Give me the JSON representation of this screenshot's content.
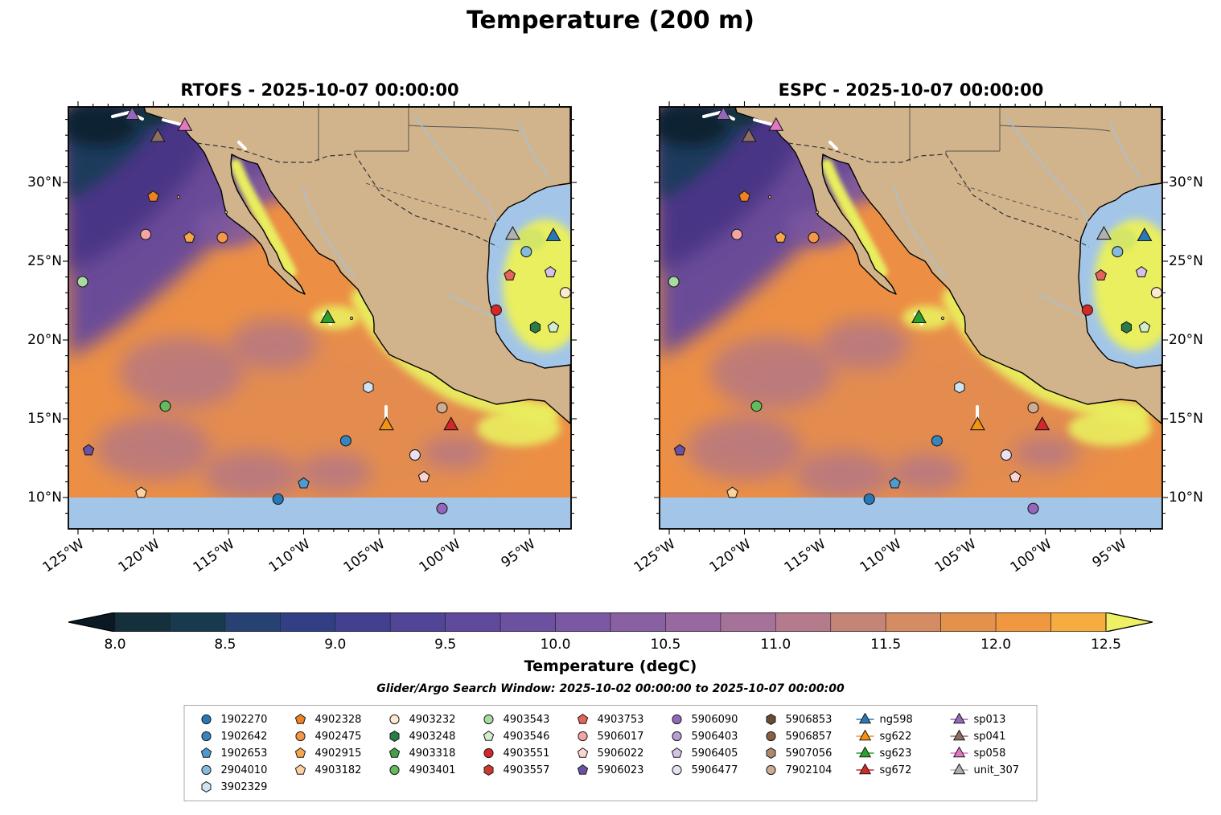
{
  "title": "Temperature (200 m)",
  "subtitle": "Glider/Argo Search Window: 2025-10-02 00:00:00 to 2025-10-07 00:00:00",
  "panels": [
    {
      "model": "RTOFS",
      "title": "RTOFS - 2025-10-07 00:00:00"
    },
    {
      "model": "ESPC",
      "title": "ESPC - 2025-10-07 00:00:00"
    }
  ],
  "axes": {
    "lat_ticks": [
      {
        "label": "30°N",
        "value": 30
      },
      {
        "label": "25°N",
        "value": 25
      },
      {
        "label": "20°N",
        "value": 20
      },
      {
        "label": "15°N",
        "value": 15
      },
      {
        "label": "10°N",
        "value": 10
      }
    ],
    "lon_ticks": [
      {
        "label": "125°W",
        "value": -125
      },
      {
        "label": "120°W",
        "value": -120
      },
      {
        "label": "115°W",
        "value": -115
      },
      {
        "label": "110°W",
        "value": -110
      },
      {
        "label": "105°W",
        "value": -105
      },
      {
        "label": "100°W",
        "value": -100
      },
      {
        "label": "95°W",
        "value": -95
      }
    ]
  },
  "colorbar": {
    "label": "Temperature (degC)",
    "tick_labels": [
      "8.0",
      "8.5",
      "9.0",
      "9.5",
      "10.0",
      "10.5",
      "11.0",
      "11.5",
      "12.0",
      "12.5"
    ],
    "vmin": 8.0,
    "vmax": 12.5,
    "under_color": "#0a1a24",
    "over_color": "#edf163",
    "segment_colors": [
      "#13303c",
      "#173a4e",
      "#274173",
      "#333f85",
      "#42408f",
      "#514597",
      "#5f4a9d",
      "#6d51a1",
      "#7b58a3",
      "#8961a3",
      "#9769a0",
      "#a5729a",
      "#b47b8d",
      "#c48478",
      "#d48c62",
      "#e4914d",
      "#ef9840",
      "#f6ad3f"
    ]
  },
  "map_colors": {
    "land": "#d2b48c",
    "no_data_water": "#a3c6e8",
    "coastline": "#000000"
  },
  "legend": {
    "columns": [
      [
        {
          "label": "1902270",
          "shape": "circle",
          "color": "#2878b8"
        },
        {
          "label": "1902642",
          "shape": "circle",
          "color": "#3585bf"
        },
        {
          "label": "1902653",
          "shape": "pentagon",
          "color": "#4f9bcf"
        },
        {
          "label": "2904010",
          "shape": "circle",
          "color": "#85bcdb"
        },
        {
          "label": "3902329",
          "shape": "hexagon",
          "color": "#cfe3f2"
        }
      ],
      [
        {
          "label": "4902328",
          "shape": "pentagon",
          "color": "#ef8122"
        },
        {
          "label": "4902475",
          "shape": "circle",
          "color": "#f79646"
        },
        {
          "label": "4902915",
          "shape": "pentagon",
          "color": "#f9a64a"
        },
        {
          "label": "4903182",
          "shape": "pentagon",
          "color": "#fdd1a0"
        }
      ],
      [
        {
          "label": "4903232",
          "shape": "circle",
          "color": "#fdeacc"
        },
        {
          "label": "4903248",
          "shape": "hexagon",
          "color": "#287d46"
        },
        {
          "label": "4903318",
          "shape": "pentagon",
          "color": "#46a049"
        },
        {
          "label": "4903401",
          "shape": "circle",
          "color": "#63bb5e"
        }
      ],
      [
        {
          "label": "4903543",
          "shape": "circle",
          "color": "#a8dba0"
        },
        {
          "label": "4903546",
          "shape": "pentagon",
          "color": "#d2edcc"
        },
        {
          "label": "4903551",
          "shape": "circle",
          "color": "#d62728"
        },
        {
          "label": "4903557",
          "shape": "hexagon",
          "color": "#cc3a2e"
        }
      ],
      [
        {
          "label": "4903753",
          "shape": "pentagon",
          "color": "#e4635a"
        },
        {
          "label": "5906017",
          "shape": "circle",
          "color": "#f4a5a3"
        },
        {
          "label": "5906022",
          "shape": "pentagon",
          "color": "#fbd5d3"
        },
        {
          "label": "5906023",
          "shape": "pentagon",
          "color": "#6a51a3"
        }
      ],
      [
        {
          "label": "5906090",
          "shape": "circle",
          "color": "#9467bd"
        },
        {
          "label": "5906403",
          "shape": "circle",
          "color": "#b79dd4"
        },
        {
          "label": "5906405",
          "shape": "pentagon",
          "color": "#d3c2e5"
        },
        {
          "label": "5906477",
          "shape": "circle",
          "color": "#e9e0f2"
        }
      ],
      [
        {
          "label": "5906853",
          "shape": "hexagon",
          "color": "#6b4a2f"
        },
        {
          "label": "5906857",
          "shape": "circle",
          "color": "#8a5f3f"
        },
        {
          "label": "5907056",
          "shape": "hexagon",
          "color": "#b08968"
        },
        {
          "label": "7902104",
          "shape": "circle",
          "color": "#cdac92"
        }
      ],
      [
        {
          "label": "ng598",
          "shape": "triangle",
          "color": "#2878b8",
          "track_line": true
        },
        {
          "label": "sg622",
          "shape": "triangle",
          "color": "#f5920f",
          "track_line": true
        },
        {
          "label": "sg623",
          "shape": "triangle",
          "color": "#2ca02c",
          "track_line": true
        },
        {
          "label": "sg672",
          "shape": "triangle",
          "color": "#d62728",
          "track_line": true
        }
      ],
      [
        {
          "label": "sp013",
          "shape": "triangle",
          "color": "#9467bd",
          "track_line": true
        },
        {
          "label": "sp041",
          "shape": "triangle",
          "color": "#8d6e63",
          "track_line": true
        },
        {
          "label": "sp058",
          "shape": "triangle",
          "color": "#e377c2",
          "track_line": true
        },
        {
          "label": "unit_307",
          "shape": "triangle",
          "color": "#b0b0b0",
          "track_line": true
        }
      ]
    ]
  },
  "chart_data": {
    "type": "heatmap",
    "subtype": "geographic filled-contour model comparison, 2 panels sharing one colorbar",
    "variable": "Temperature at 200 m depth (degC)",
    "panel_titles": [
      "RTOFS - 2025-10-07 00:00:00",
      "ESPC - 2025-10-07 00:00:00"
    ],
    "lon_range_degE": [
      -127.6,
      -92.2
    ],
    "lat_range_degN": [
      8.0,
      34.8
    ],
    "color_scale": {
      "vmin": 8.0,
      "vmax": 12.5,
      "tick_step": 0.5,
      "units": "degC",
      "extend": "both"
    },
    "field_description": [
      "Cold water 8-9 degC (dark navy) in the far northwest off California",
      "Purple band 9.5-10.5 degC along the California/Baja current region",
      "Orange 11-12 degC across the subtropical Pacific interior with dusty-purple 10-10.5 degC patches",
      "Yellow >12.5 degC in the upper Gulf of California, along the southwest Mexican coast, and a warm eddy in the western Gulf of Mexico",
      "Light blue denotes no-data water (Gulf of Mexico shelf and south of 10°N); tan denotes land"
    ],
    "search_window": "2025-10-02 00:00:00 to 2025-10-07 00:00:00",
    "platform_markers": [
      {
        "id": "sp013",
        "shape": "triangle",
        "color": "#9467bd",
        "lon": -121.4,
        "lat": 34.3
      },
      {
        "id": "sp058",
        "shape": "triangle",
        "color": "#e377c2",
        "lon": -117.9,
        "lat": 33.6
      },
      {
        "id": "sp041",
        "shape": "triangle",
        "color": "#8d6e63",
        "lon": -119.7,
        "lat": 32.9
      },
      {
        "id": "4902328",
        "shape": "pentagon",
        "color": "#ef8122",
        "lon": -120.0,
        "lat": 29.1
      },
      {
        "id": "5906017",
        "shape": "circle",
        "color": "#f4a5a3",
        "lon": -120.5,
        "lat": 26.7
      },
      {
        "id": "4902915",
        "shape": "pentagon",
        "color": "#f9a64a",
        "lon": -117.6,
        "lat": 26.5
      },
      {
        "id": "4902475",
        "shape": "circle",
        "color": "#f79646",
        "lon": -115.4,
        "lat": 26.5
      },
      {
        "id": "4903543",
        "shape": "circle",
        "color": "#a8dba0",
        "lon": -124.7,
        "lat": 23.7
      },
      {
        "id": "sg623",
        "shape": "triangle",
        "color": "#2ca02c",
        "lon": -108.4,
        "lat": 21.4
      },
      {
        "id": "unit_307",
        "shape": "triangle",
        "color": "#b0b0b0",
        "lon": -96.1,
        "lat": 26.7
      },
      {
        "id": "ng598",
        "shape": "triangle",
        "color": "#2878b8",
        "lon": -93.4,
        "lat": 26.6
      },
      {
        "id": "2904010",
        "shape": "circle",
        "color": "#85bcdb",
        "lon": -95.2,
        "lat": 25.6
      },
      {
        "id": "4903753",
        "shape": "pentagon",
        "color": "#e4635a",
        "lon": -96.3,
        "lat": 24.1
      },
      {
        "id": "5906405",
        "shape": "pentagon",
        "color": "#d3c2e5",
        "lon": -93.6,
        "lat": 24.3
      },
      {
        "id": "4903232",
        "shape": "circle",
        "color": "#fdeacc",
        "lon": -92.6,
        "lat": 23.0
      },
      {
        "id": "4903551",
        "shape": "circle",
        "color": "#d62728",
        "lon": -97.2,
        "lat": 21.9
      },
      {
        "id": "4903248",
        "shape": "hexagon",
        "color": "#287d46",
        "lon": -94.6,
        "lat": 20.8
      },
      {
        "id": "4903546",
        "shape": "pentagon",
        "color": "#d2edcc",
        "lon": -93.4,
        "lat": 20.8
      },
      {
        "id": "3902329",
        "shape": "hexagon",
        "color": "#cfe3f2",
        "lon": -105.7,
        "lat": 17.0
      },
      {
        "id": "4903401",
        "shape": "circle",
        "color": "#63bb5e",
        "lon": -119.2,
        "lat": 15.8
      },
      {
        "id": "7902104",
        "shape": "circle",
        "color": "#cdac92",
        "lon": -100.8,
        "lat": 15.7
      },
      {
        "id": "sg622",
        "shape": "triangle",
        "color": "#f5920f",
        "lon": -104.5,
        "lat": 14.6
      },
      {
        "id": "sg672",
        "shape": "triangle",
        "color": "#d62728",
        "lon": -100.2,
        "lat": 14.6
      },
      {
        "id": "5906023",
        "shape": "pentagon",
        "color": "#6a51a3",
        "lon": -124.3,
        "lat": 13.0
      },
      {
        "id": "1902642",
        "shape": "circle",
        "color": "#3585bf",
        "lon": -107.2,
        "lat": 13.6
      },
      {
        "id": "5906477",
        "shape": "circle",
        "color": "#e9e0f2",
        "lon": -102.6,
        "lat": 12.7
      },
      {
        "id": "5906022",
        "shape": "pentagon",
        "color": "#fbd5d3",
        "lon": -102.0,
        "lat": 11.3
      },
      {
        "id": "1902653",
        "shape": "pentagon",
        "color": "#4f9bcf",
        "lon": -110.0,
        "lat": 10.9
      },
      {
        "id": "1902270",
        "shape": "circle",
        "color": "#2878b8",
        "lon": -111.7,
        "lat": 9.9
      },
      {
        "id": "4903182",
        "shape": "pentagon",
        "color": "#fdd1a0",
        "lon": -120.8,
        "lat": 10.3
      },
      {
        "id": "5906090",
        "shape": "circle",
        "color": "#9467bd",
        "lon": -100.8,
        "lat": 9.3
      }
    ]
  }
}
